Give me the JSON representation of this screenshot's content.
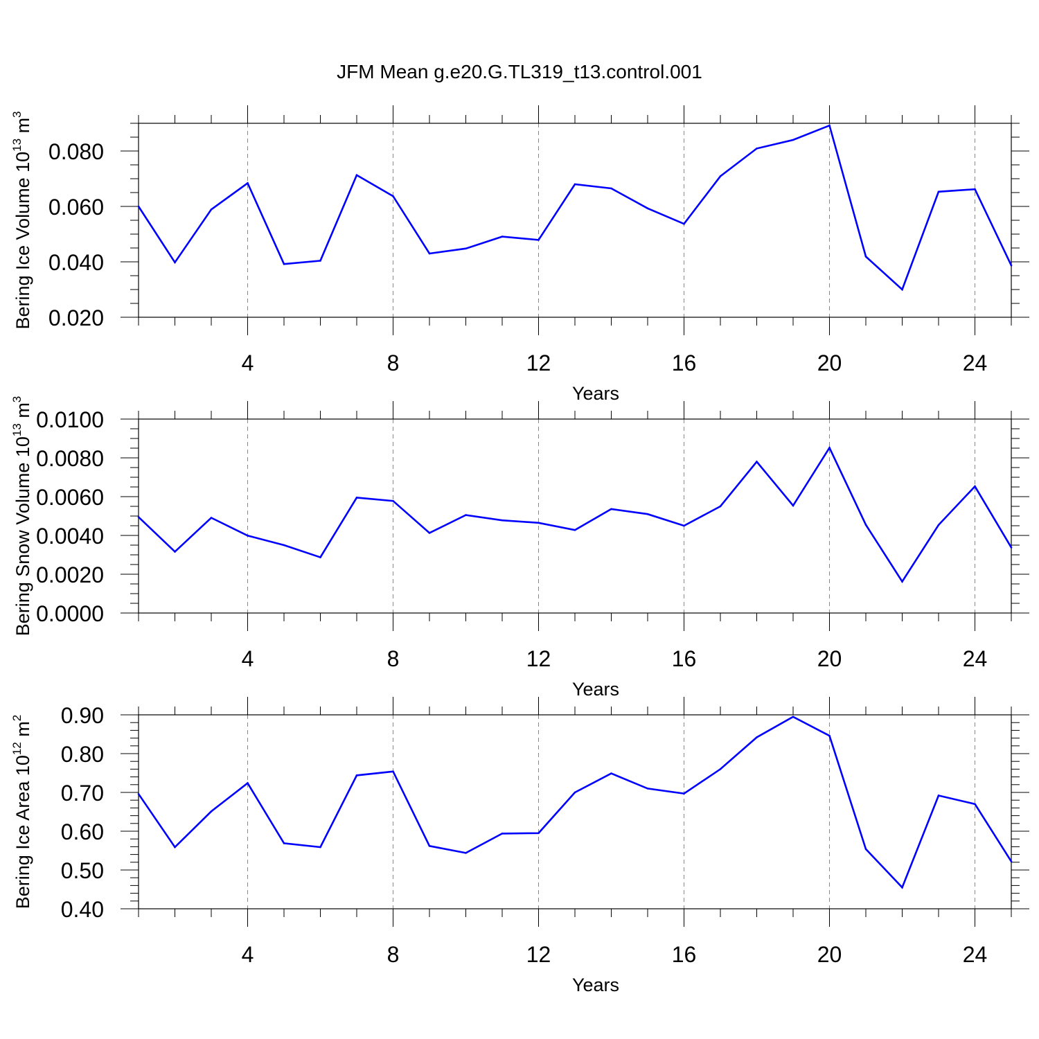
{
  "title": "JFM Mean g.e20.G.TL319_t13.control.001",
  "colors": {
    "line": "#0000ff",
    "axis": "#000000",
    "grid": "#888888"
  },
  "chart_data": [
    {
      "type": "line",
      "ylabel": {
        "base": "Bering Ice Volume 10",
        "sup1": "13",
        "mid": " m",
        "sup2": "3"
      },
      "xlabel": "Years",
      "xlim": [
        1,
        25
      ],
      "ylim": [
        0.02,
        0.09
      ],
      "xticks": [
        4,
        8,
        12,
        16,
        20,
        24
      ],
      "xtick_labels": [
        "4",
        "8",
        "12",
        "16",
        "20",
        "24"
      ],
      "yticks": [
        0.02,
        0.04,
        0.06,
        0.08
      ],
      "ytick_labels": [
        "0.020",
        "0.040",
        "0.060",
        "0.080"
      ],
      "yminor_step": 0.005,
      "grid": "vertical-dashed",
      "x": [
        1,
        2,
        3,
        4,
        5,
        6,
        7,
        8,
        9,
        10,
        11,
        12,
        13,
        14,
        15,
        16,
        17,
        18,
        19,
        20,
        21,
        22,
        23,
        24,
        25
      ],
      "values": [
        0.06,
        0.0398,
        0.0589,
        0.0684,
        0.0392,
        0.0404,
        0.0713,
        0.0637,
        0.043,
        0.0448,
        0.0491,
        0.0479,
        0.068,
        0.0665,
        0.0593,
        0.0537,
        0.0709,
        0.0809,
        0.084,
        0.0892,
        0.0419,
        0.03,
        0.0653,
        0.0662,
        0.0387
      ]
    },
    {
      "type": "line",
      "ylabel": {
        "base": "Bering Snow Volume 10",
        "sup1": "13",
        "mid": " m",
        "sup2": "3"
      },
      "xlabel": "Years",
      "xlim": [
        1,
        25
      ],
      "ylim": [
        0,
        0.01
      ],
      "xticks": [
        4,
        8,
        12,
        16,
        20,
        24
      ],
      "xtick_labels": [
        "4",
        "8",
        "12",
        "16",
        "20",
        "24"
      ],
      "yticks": [
        0,
        0.002,
        0.004,
        0.006,
        0.008,
        0.01
      ],
      "ytick_labels": [
        "0.0000",
        "0.0020",
        "0.0040",
        "0.0060",
        "0.0080",
        "0.0100"
      ],
      "yminor_step": 0.0005,
      "grid": "vertical-dashed",
      "x": [
        1,
        2,
        3,
        4,
        5,
        6,
        7,
        8,
        9,
        10,
        11,
        12,
        13,
        14,
        15,
        16,
        17,
        18,
        19,
        20,
        21,
        22,
        23,
        24,
        25
      ],
      "values": [
        0.00495,
        0.00316,
        0.00491,
        0.00399,
        0.0035,
        0.00287,
        0.00595,
        0.00578,
        0.00413,
        0.00505,
        0.00478,
        0.00465,
        0.00428,
        0.00536,
        0.0051,
        0.0045,
        0.0055,
        0.0078,
        0.00554,
        0.00852,
        0.00455,
        0.00162,
        0.00454,
        0.00653,
        0.00338
      ]
    },
    {
      "type": "line",
      "ylabel": {
        "base": "Bering Ice Area 10",
        "sup1": "12",
        "mid": " m",
        "sup2": "2"
      },
      "xlabel": "Years",
      "xlim": [
        1,
        25
      ],
      "ylim": [
        0.4,
        0.9
      ],
      "xticks": [
        4,
        8,
        12,
        16,
        20,
        24
      ],
      "xtick_labels": [
        "4",
        "8",
        "12",
        "16",
        "20",
        "24"
      ],
      "yticks": [
        0.4,
        0.5,
        0.6,
        0.7,
        0.8,
        0.9
      ],
      "ytick_labels": [
        "0.40",
        "0.50",
        "0.60",
        "0.70",
        "0.80",
        "0.90"
      ],
      "yminor_step": 0.02,
      "grid": "vertical-dashed",
      "x": [
        1,
        2,
        3,
        4,
        5,
        6,
        7,
        8,
        9,
        10,
        11,
        12,
        13,
        14,
        15,
        16,
        17,
        18,
        19,
        20,
        21,
        22,
        23,
        24,
        25
      ],
      "values": [
        0.696,
        0.559,
        0.651,
        0.724,
        0.569,
        0.559,
        0.744,
        0.754,
        0.562,
        0.544,
        0.594,
        0.595,
        0.7,
        0.749,
        0.71,
        0.697,
        0.76,
        0.842,
        0.895,
        0.846,
        0.554,
        0.455,
        0.692,
        0.67,
        0.522
      ]
    }
  ]
}
